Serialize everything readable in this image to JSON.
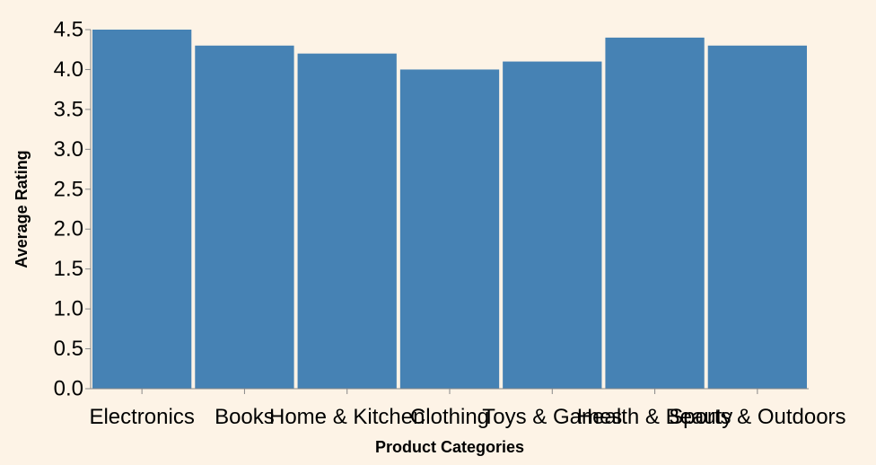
{
  "chart_data": {
    "type": "bar",
    "categories": [
      "Electronics",
      "Books",
      "Home & Kitchen",
      "Clothing",
      "Toys & Games",
      "Health & Beauty",
      "Sports & Outdoors"
    ],
    "values": [
      4.5,
      4.3,
      4.2,
      4.0,
      4.1,
      4.4,
      4.3
    ],
    "xlabel": "Product Categories",
    "ylabel": "Average Rating",
    "ylim": [
      0,
      4.5
    ],
    "yticks": [
      "0.0",
      "0.5",
      "1.0",
      "1.5",
      "2.0",
      "2.5",
      "3.0",
      "3.5",
      "4.0",
      "4.5"
    ],
    "grid": false,
    "colors": {
      "bar": "#4682b4",
      "axis": "#888888",
      "background": "#fdf3e6"
    }
  }
}
